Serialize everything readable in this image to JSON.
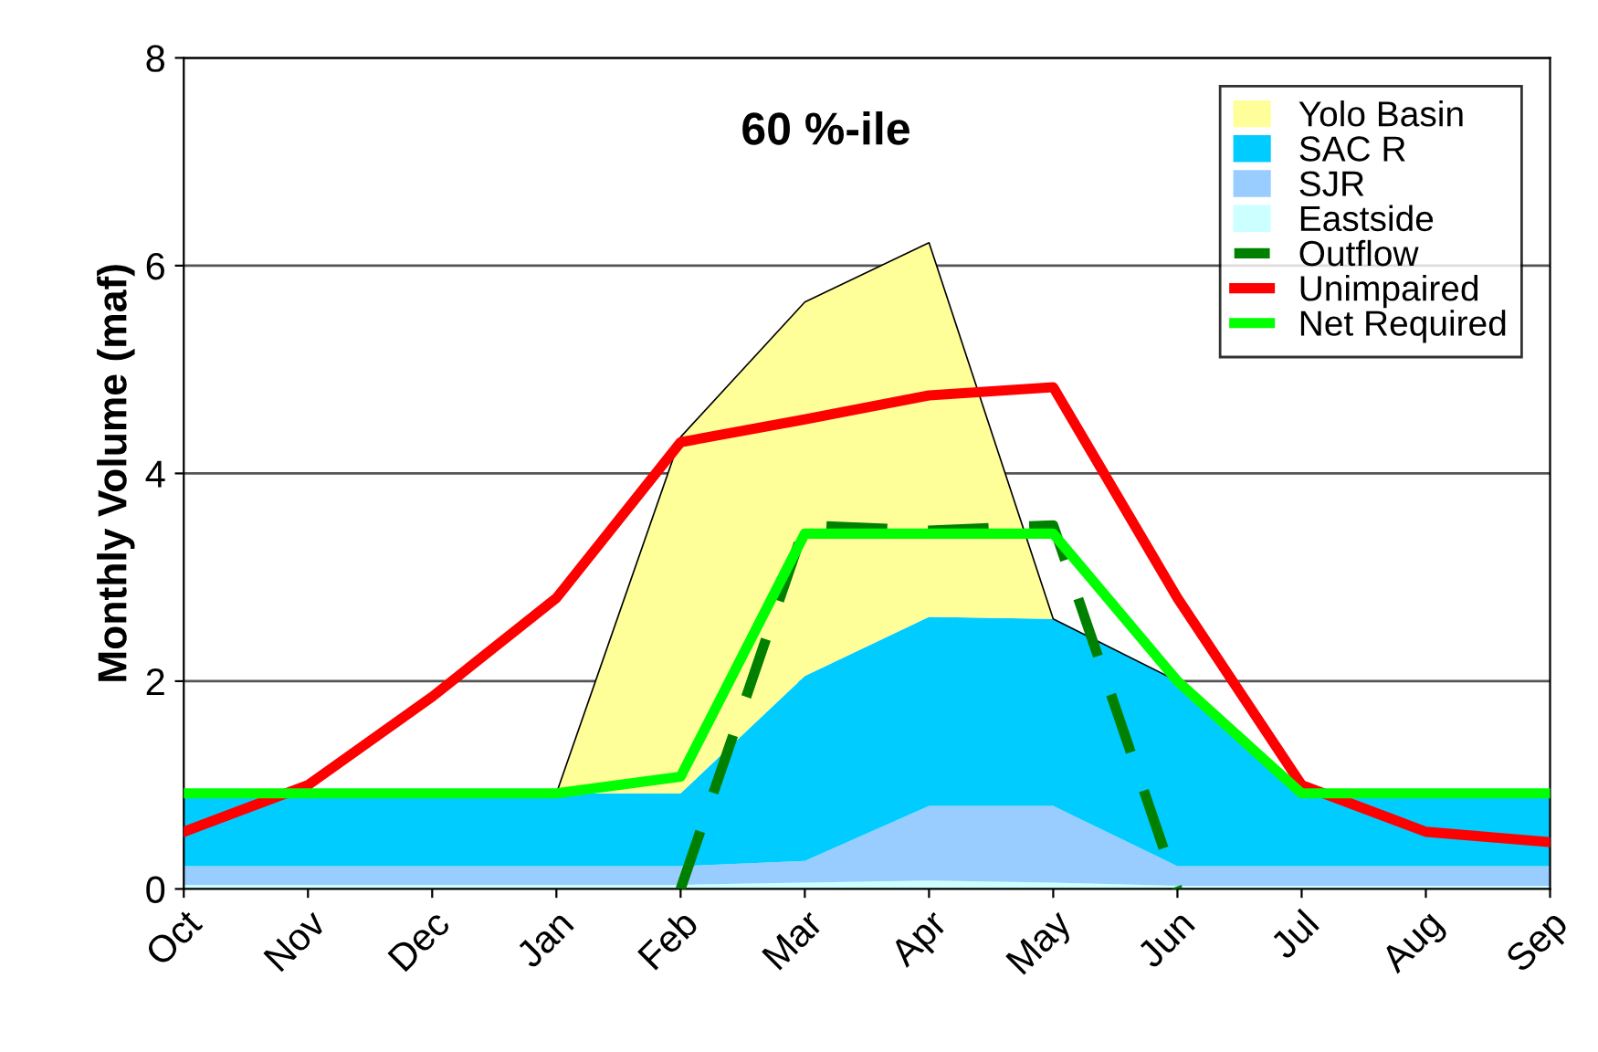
{
  "chart_data": {
    "type": "area",
    "stacked": true,
    "ylabel": "Monthly Volume (maf)",
    "annotations": [
      "60 %-ile"
    ],
    "categories": [
      "Oct",
      "Nov",
      "Dec",
      "Jan",
      "Feb",
      "Mar",
      "Apr",
      "May",
      "Jun",
      "Jul",
      "Aug",
      "Sep"
    ],
    "series": [
      {
        "name": "Eastside",
        "color": "#ccffff",
        "values": [
          0.04,
          0.04,
          0.04,
          0.04,
          0.04,
          0.06,
          0.08,
          0.06,
          0.03,
          0.03,
          0.03,
          0.03
        ]
      },
      {
        "name": "SJR",
        "color": "#99ccff",
        "values": [
          0.18,
          0.18,
          0.18,
          0.18,
          0.18,
          0.21,
          0.72,
          0.74,
          0.19,
          0.19,
          0.19,
          0.19
        ]
      },
      {
        "name": "SAC R",
        "color": "#00ccff",
        "values": [
          0.7,
          0.7,
          0.7,
          0.7,
          0.7,
          1.78,
          1.82,
          1.8,
          1.78,
          0.7,
          0.7,
          0.7
        ]
      },
      {
        "name": "Yolo Basin",
        "color": "#ffff99",
        "values": [
          0,
          0,
          0,
          0,
          3.43,
          3.6,
          3.6,
          0,
          0,
          0,
          0,
          0
        ]
      },
      {
        "name": "Outflow",
        "type": "line",
        "line_style": "dashed",
        "color": "#008000",
        "values": [
          null,
          null,
          null,
          null,
          0,
          3.5,
          3.45,
          3.5,
          0,
          null,
          null,
          null
        ]
      },
      {
        "name": "Unimpaired",
        "type": "line",
        "line_style": "solid",
        "color": "#ff0000",
        "values": [
          0.55,
          1.0,
          1.85,
          2.8,
          4.3,
          4.52,
          4.75,
          4.83,
          2.8,
          1.0,
          0.55,
          0.45
        ]
      },
      {
        "name": "Net Required",
        "type": "line",
        "line_style": "solid",
        "color": "#00ff00",
        "values": [
          0.92,
          0.92,
          0.92,
          0.92,
          1.08,
          3.42,
          3.42,
          3.42,
          2.0,
          0.92,
          0.92,
          0.92
        ]
      }
    ],
    "ylim": [
      0,
      8
    ],
    "yticks": [
      0,
      2,
      4,
      6,
      8
    ],
    "grid": "y",
    "legend": "top right"
  }
}
